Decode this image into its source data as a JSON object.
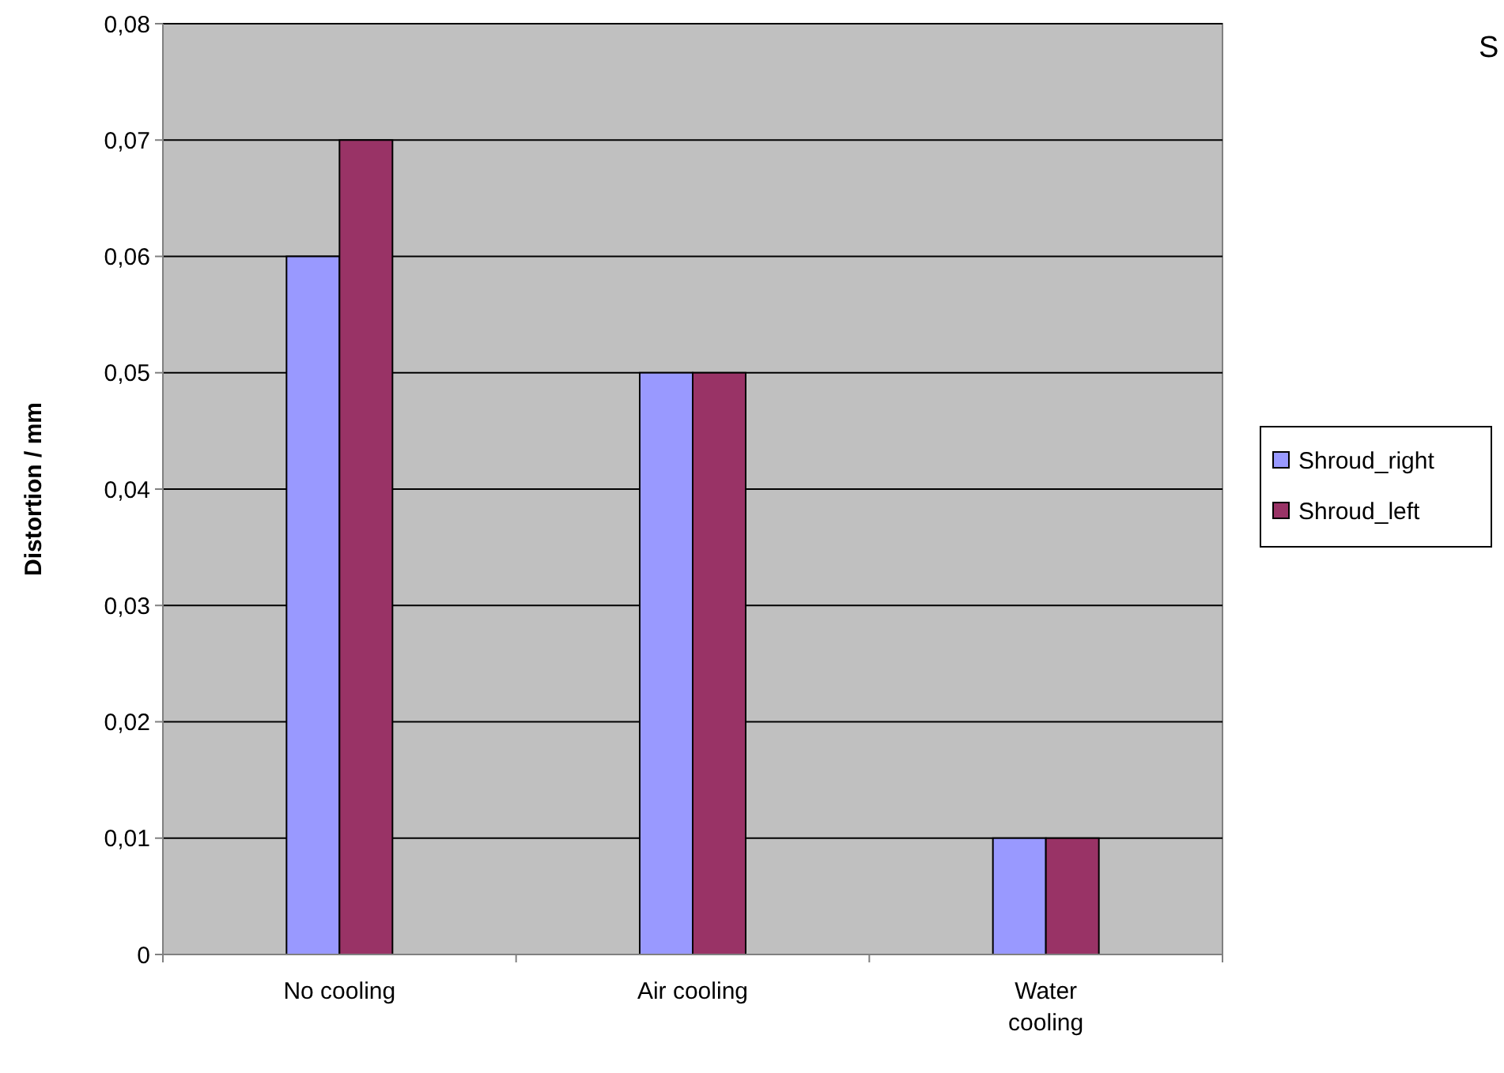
{
  "chart_data": {
    "type": "bar",
    "title": "S",
    "ylabel": "Distortion / mm",
    "categories": [
      "No cooling",
      "Air cooling",
      "Water cooling"
    ],
    "series": [
      {
        "name": "Shroud_right",
        "color": "#9999ff",
        "values": [
          0.06,
          0.05,
          0.01
        ]
      },
      {
        "name": "Shroud_left",
        "color": "#993366",
        "values": [
          0.07,
          0.05,
          0.01
        ]
      }
    ],
    "ylim": [
      0,
      0.08
    ],
    "yticks": [
      {
        "value": 0,
        "label": "0"
      },
      {
        "value": 0.01,
        "label": "0,01"
      },
      {
        "value": 0.02,
        "label": "0,02"
      },
      {
        "value": 0.03,
        "label": "0,03"
      },
      {
        "value": 0.04,
        "label": "0,04"
      },
      {
        "value": 0.05,
        "label": "0,05"
      },
      {
        "value": 0.06,
        "label": "0,06"
      },
      {
        "value": 0.07,
        "label": "0,07"
      },
      {
        "value": 0.08,
        "label": "0,08"
      }
    ],
    "grid": "y",
    "legend": "right"
  }
}
